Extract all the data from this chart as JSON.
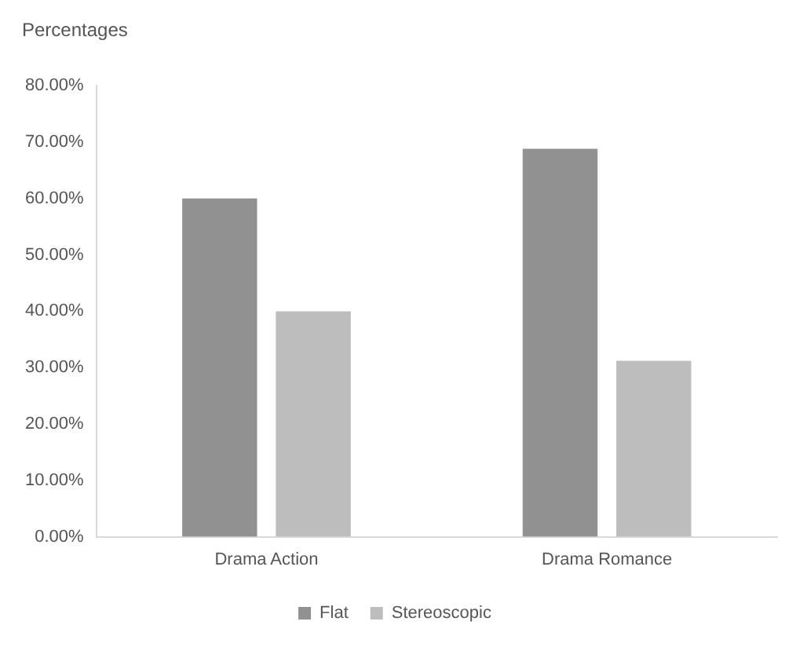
{
  "chart_data": {
    "type": "bar",
    "ylabel": "Percentages",
    "categories": [
      "Drama Action",
      "Drama Romance"
    ],
    "series": [
      {
        "name": "Flat",
        "color": "#919191",
        "values": [
          60,
          68.8
        ]
      },
      {
        "name": "Stereoscopic",
        "color": "#bdbdbd",
        "values": [
          40,
          31.2
        ]
      }
    ],
    "ylim": [
      0,
      80
    ],
    "yticks": [
      {
        "value": 0,
        "label": "0.00%"
      },
      {
        "value": 10,
        "label": "10.00%"
      },
      {
        "value": 20,
        "label": "20.00%"
      },
      {
        "value": 30,
        "label": "30.00%"
      },
      {
        "value": 40,
        "label": "40.00%"
      },
      {
        "value": 50,
        "label": "50.00%"
      },
      {
        "value": 60,
        "label": "60.00%"
      },
      {
        "value": 70,
        "label": "70.00%"
      },
      {
        "value": 80,
        "label": "80.00%"
      }
    ],
    "grid": false,
    "legend": "bottom"
  }
}
